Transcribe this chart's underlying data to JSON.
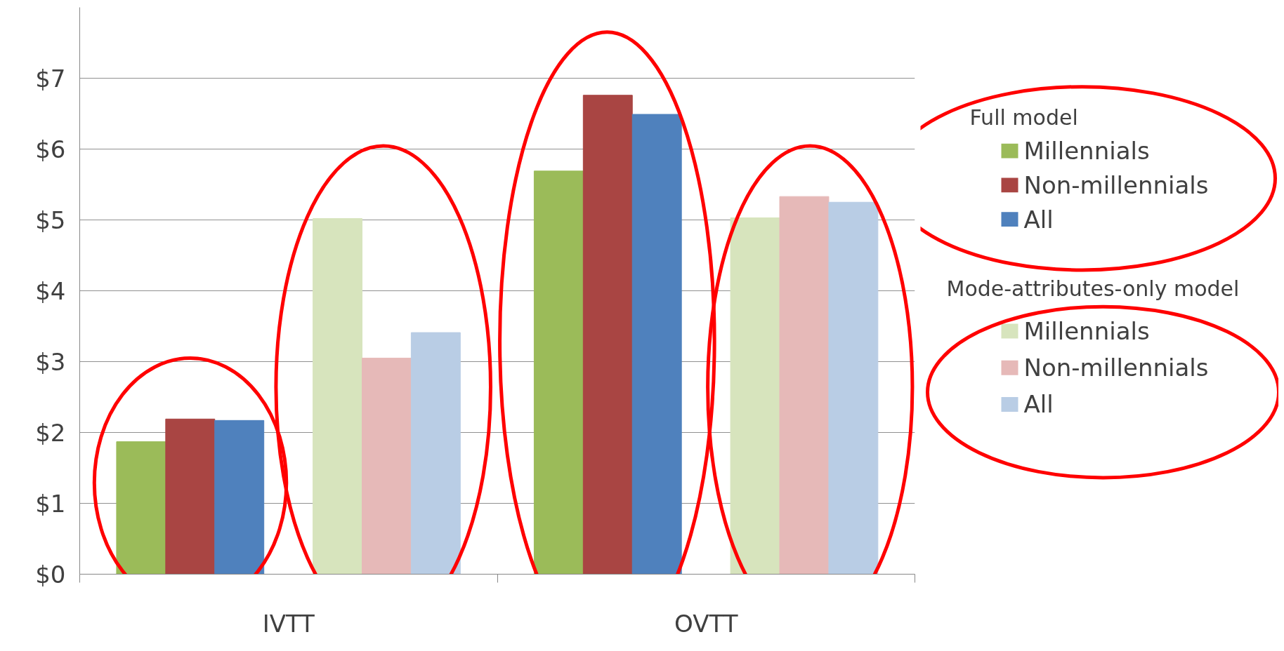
{
  "chart_data": {
    "type": "bar",
    "categories": [
      "IVTT",
      "OVTT"
    ],
    "series": [
      {
        "name": "Millennials",
        "color": "#9bbb59",
        "values": [
          1.87,
          5.69
        ]
      },
      {
        "name": "Non-millennials",
        "color": "#a94543",
        "values": [
          2.19,
          6.76
        ]
      },
      {
        "name": "All",
        "color": "#4f81bd",
        "values": [
          2.17,
          6.49
        ]
      },
      {
        "name": "Millennials",
        "color": "#d7e4bd",
        "values": [
          5.02,
          5.03
        ]
      },
      {
        "name": "Non-millennials",
        "color": "#e6b9b8",
        "values": [
          3.05,
          5.33
        ]
      },
      {
        "name": "All",
        "color": "#b9cde5",
        "values": [
          3.41,
          5.25
        ]
      }
    ],
    "annotations": [
      "Full model",
      "Mode-attributes-only model"
    ],
    "ylim": [
      0,
      8
    ],
    "yticks": [
      {
        "value": 0,
        "label": "$0"
      },
      {
        "value": 1,
        "label": "$1"
      },
      {
        "value": 2,
        "label": "$2"
      },
      {
        "value": 3,
        "label": "$3"
      },
      {
        "value": 4,
        "label": "$4"
      },
      {
        "value": 5,
        "label": "$5"
      },
      {
        "value": 6,
        "label": "$6"
      },
      {
        "value": 7,
        "label": "$7"
      }
    ],
    "grid": "y",
    "legend": "right"
  }
}
